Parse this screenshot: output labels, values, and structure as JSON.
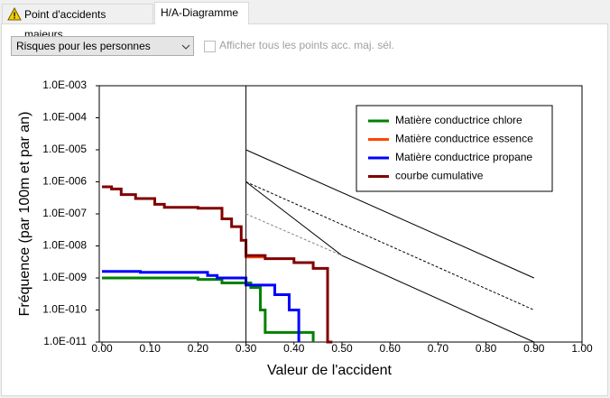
{
  "tabs": [
    "Point d'accidents majeurs",
    "H/A-Diagramme"
  ],
  "dropdown": "Risques pour les personnes",
  "checkbox": "Afficher tous les points acc. maj. sél.",
  "chart_data": {
    "type": "line",
    "xlabel": "Valeur de l'accident",
    "ylabel": "Fréquence (par 100m et par an)",
    "xlim": [
      0,
      1
    ],
    "xticks": [
      {
        "value": 0,
        "label": "0.00"
      },
      {
        "value": 0.1,
        "label": "0.10"
      },
      {
        "value": 0.2,
        "label": "0.20"
      },
      {
        "value": 0.3,
        "label": "0.30"
      },
      {
        "value": 0.4,
        "label": "0.40"
      },
      {
        "value": 0.5,
        "label": "0.50"
      },
      {
        "value": 0.6,
        "label": "0.60"
      },
      {
        "value": 0.7,
        "label": "0.70"
      },
      {
        "value": 0.8,
        "label": "0.80"
      },
      {
        "value": 0.9,
        "label": "0.90"
      },
      {
        "value": 1,
        "label": "1.00"
      }
    ],
    "ylim": [
      1e-11,
      0.001
    ],
    "ylog": true,
    "yticks": [
      {
        "value": 0.001,
        "label": "1.0E-003"
      },
      {
        "value": 0.0001,
        "label": "1.0E-004"
      },
      {
        "value": 1e-05,
        "label": "1.0E-005"
      },
      {
        "value": 1e-06,
        "label": "1.0E-006"
      },
      {
        "value": 1e-07,
        "label": "1.0E-007"
      },
      {
        "value": 1e-08,
        "label": "1.0E-008"
      },
      {
        "value": 1e-09,
        "label": "1.0E-009"
      },
      {
        "value": 1e-10,
        "label": "1.0E-010"
      },
      {
        "value": 1e-11,
        "label": "1.0E-011"
      }
    ],
    "legend": "upper right",
    "series": [
      {
        "name": "Matière conductrice chlore",
        "color": "#008000",
        "x": [
          0,
          0.2,
          0.2,
          0.25,
          0.25,
          0.31,
          0.31,
          0.33,
          0.33,
          0.34,
          0.34,
          0.44,
          0.44
        ],
        "values": [
          1e-09,
          1e-09,
          9e-10,
          9e-10,
          7e-10,
          7e-10,
          5e-10,
          5e-10,
          1e-10,
          1e-10,
          2e-11,
          2e-11,
          1e-11
        ]
      },
      {
        "name": "Matière conductrice essence",
        "color": "#ff4500",
        "x": [
          0.3,
          0.3,
          0.34
        ],
        "values": [
          1e-08,
          4.5e-09,
          4.5e-09
        ]
      },
      {
        "name": "Matière conductrice propane",
        "color": "#0000ff",
        "x": [
          0,
          0.08,
          0.08,
          0.22,
          0.22,
          0.24,
          0.24,
          0.3,
          0.3,
          0.36,
          0.36,
          0.39,
          0.39,
          0.41,
          0.41
        ],
        "values": [
          1.6e-09,
          1.6e-09,
          1.5e-09,
          1.5e-09,
          1.2e-09,
          1.2e-09,
          1e-09,
          1e-09,
          6e-10,
          6e-10,
          3e-10,
          3e-10,
          1e-10,
          1e-10,
          1e-11
        ]
      },
      {
        "name": "courbe cumulative",
        "color": "#800000",
        "x": [
          0,
          0.02,
          0.02,
          0.04,
          0.04,
          0.07,
          0.07,
          0.11,
          0.11,
          0.13,
          0.13,
          0.2,
          0.2,
          0.25,
          0.25,
          0.27,
          0.27,
          0.29,
          0.29,
          0.3,
          0.3,
          0.34,
          0.34,
          0.4,
          0.4,
          0.44,
          0.44,
          0.47,
          0.47,
          0.48
        ],
        "values": [
          7e-07,
          7e-07,
          6e-07,
          6e-07,
          4e-07,
          4e-07,
          3e-07,
          3e-07,
          2e-07,
          2e-07,
          1.6e-07,
          1.6e-07,
          1.5e-07,
          1.5e-07,
          7e-08,
          7e-08,
          4e-08,
          4e-08,
          1.5e-08,
          1.5e-08,
          5e-09,
          5e-09,
          4e-09,
          4e-09,
          3e-09,
          3e-09,
          2e-09,
          2e-09,
          1e-11,
          1e-11
        ]
      },
      {
        "color": "#000000",
        "x": [
          0.3,
          0.3
        ],
        "values": [
          0.001,
          1e-11
        ]
      },
      {
        "color": "#000000",
        "x": [
          0.3,
          0.9
        ],
        "values": [
          1e-05,
          1e-09
        ]
      },
      {
        "color": "#000000",
        "dashed": true,
        "x": [
          0.3,
          0.9
        ],
        "values": [
          1e-06,
          1e-10
        ]
      },
      {
        "color": "#000000",
        "x": [
          0.3,
          0.5,
          0.9
        ],
        "values": [
          1e-06,
          5e-09,
          1e-11
        ]
      },
      {
        "color": "#888888",
        "dashed": true,
        "x": [
          0.3,
          0.5
        ],
        "values": [
          1e-07,
          5e-09
        ]
      }
    ]
  }
}
